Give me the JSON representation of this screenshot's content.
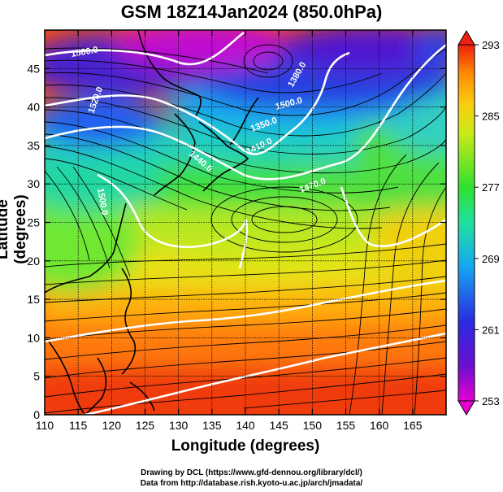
{
  "title": "GSM 18Z14Jan2024 (850.0hPa)",
  "axes": {
    "xlabel": "Longitude (degrees)",
    "ylabel": "Latitude  (degrees)",
    "x_ticks": [
      "110",
      "115",
      "120",
      "125",
      "130",
      "135",
      "140",
      "145",
      "150",
      "155",
      "160",
      "165"
    ],
    "y_ticks": [
      "0",
      "5",
      "10",
      "15",
      "20",
      "25",
      "30",
      "35",
      "40",
      "45"
    ]
  },
  "colorbar": {
    "labels": [
      "253",
      "261",
      "269",
      "277",
      "285",
      "293"
    ],
    "colors": [
      "#e600d2",
      "#3a1fd0",
      "#1aa0f0",
      "#26e04a",
      "#e8e81a",
      "#ff8c00",
      "#f02020"
    ]
  },
  "contour_labels": [
    "1350.0",
    "1380.0",
    "1410.0",
    "1440.0",
    "1470.0",
    "1500.0",
    "1520.0",
    "1560.0",
    "1500.0"
  ],
  "credits": {
    "line1": "Drawing by DCL (https://www.gfd-dennou.org/library/dcl/)",
    "line2": "Data from http://database.rish.kyoto-u.ac.jp/arch/jmadata/"
  },
  "chart_data": {
    "type": "heatmap",
    "title": "GSM 18Z14Jan2024 (850.0hPa)",
    "xlabel": "Longitude (degrees)",
    "ylabel": "Latitude  (degrees)",
    "xlim": [
      110,
      170
    ],
    "ylim": [
      0,
      50
    ],
    "color_range": [
      253,
      293
    ],
    "colorbar_ticks": [
      253,
      261,
      269,
      277,
      285,
      293
    ],
    "overlays": [
      "streamlines",
      "geopotential height contours (white)",
      "coastlines"
    ]
  }
}
